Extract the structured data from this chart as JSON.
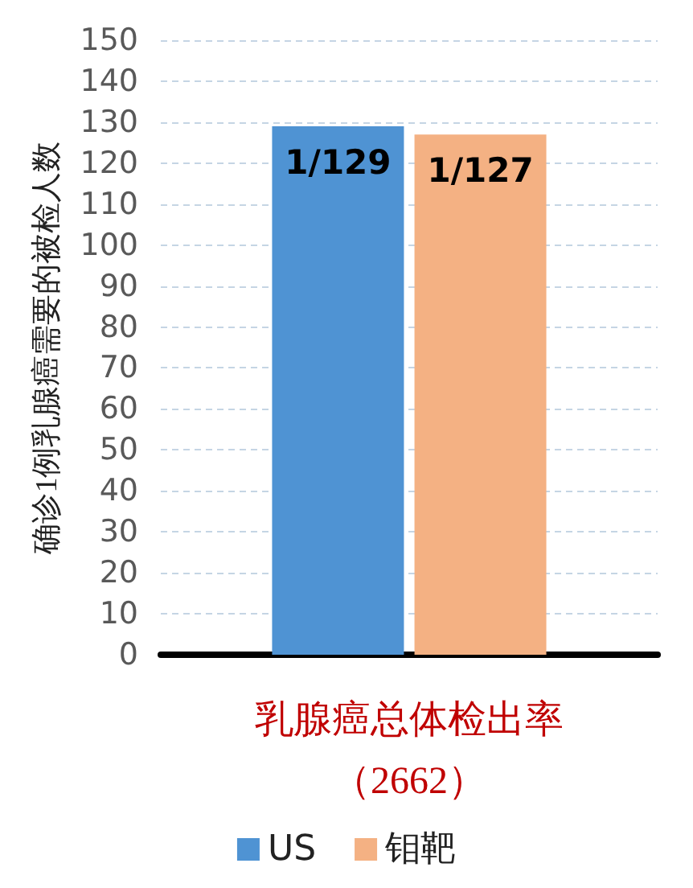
{
  "chart_data": {
    "type": "bar",
    "ylabel": "确诊1例乳腺癌需要的被检人数",
    "categories": [
      "乳腺癌总体检出率（2662）"
    ],
    "series": [
      {
        "name": "US",
        "color": "#4f93d3",
        "values": [
          129
        ],
        "value_labels": [
          "1/129"
        ]
      },
      {
        "name": "钼靶",
        "color": "#f4b183",
        "values": [
          127
        ],
        "value_labels": [
          "1/127"
        ]
      }
    ],
    "ylim": [
      0,
      150
    ],
    "yticks": [
      0,
      10,
      20,
      30,
      40,
      50,
      60,
      70,
      80,
      90,
      100,
      110,
      120,
      130,
      140,
      150
    ],
    "grid": "y",
    "legend": "bottom"
  }
}
